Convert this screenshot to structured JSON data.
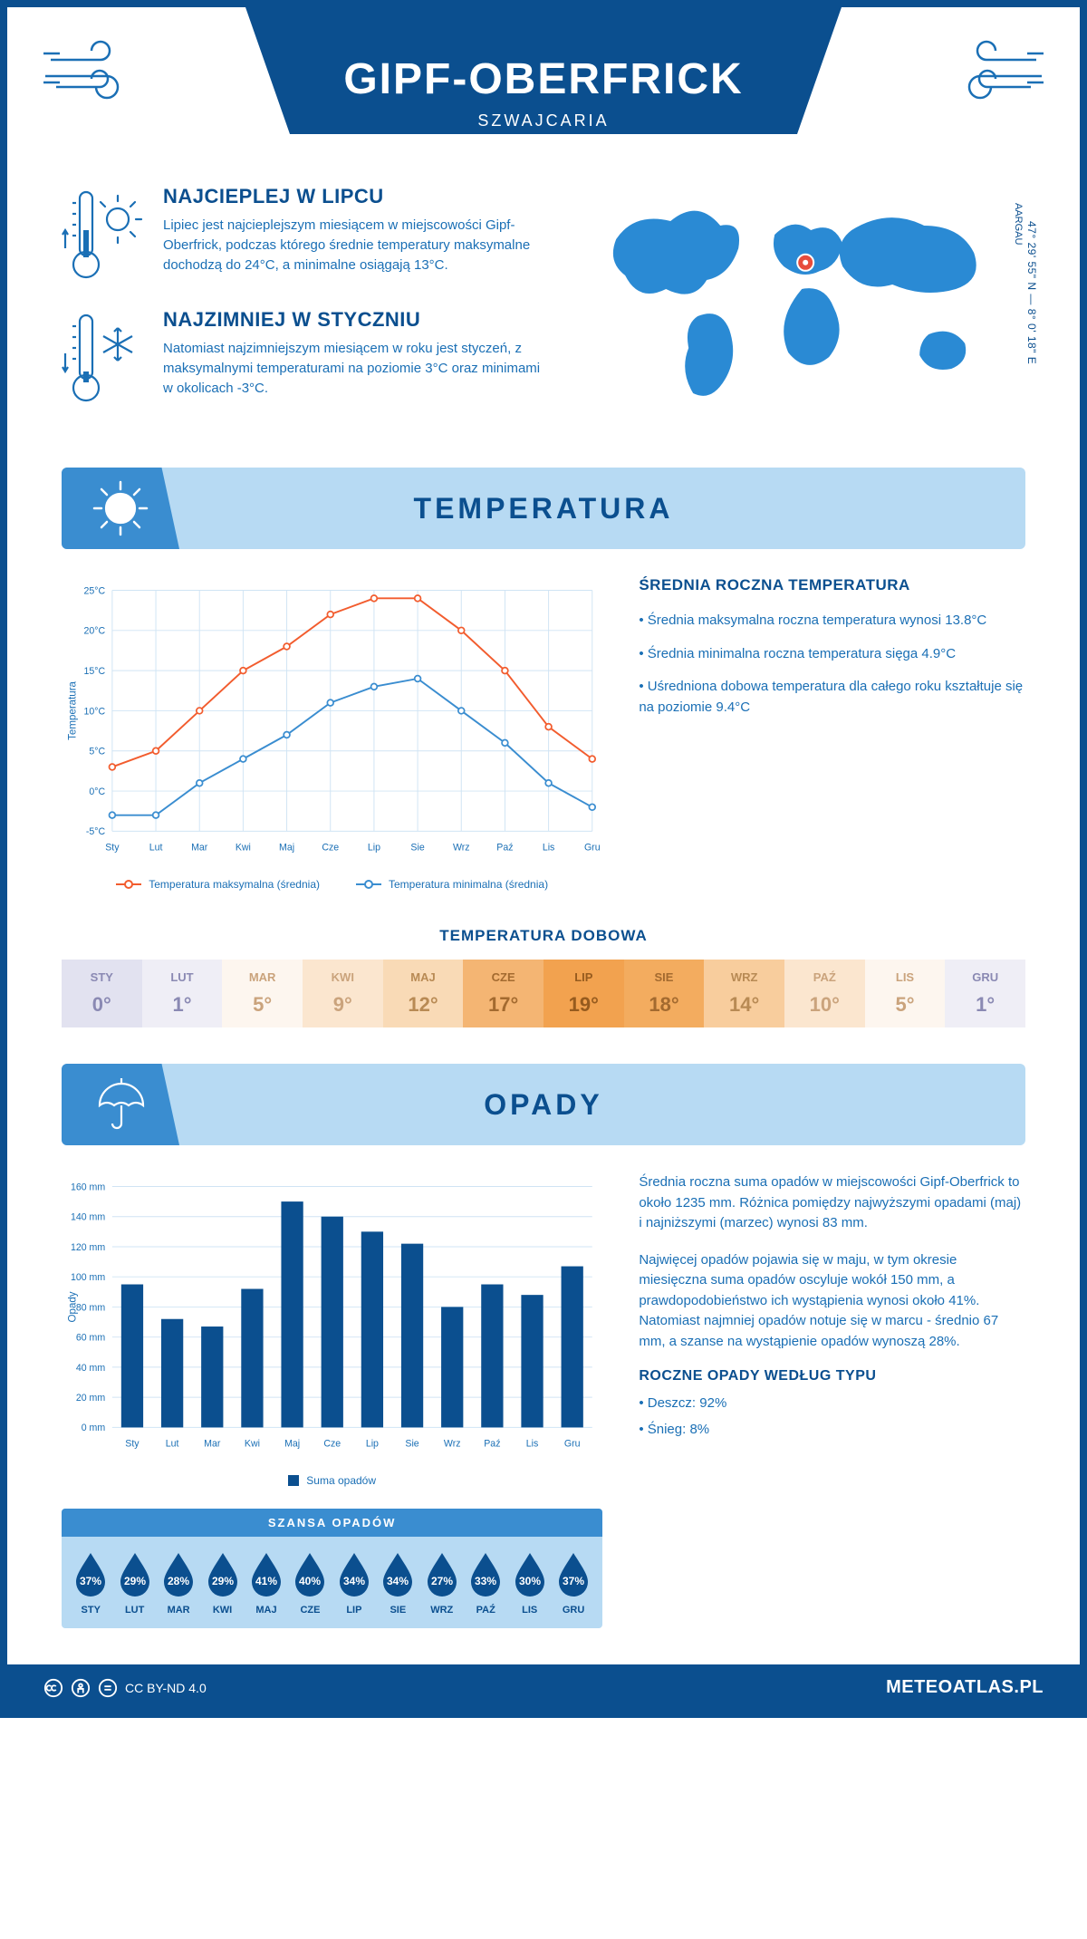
{
  "header": {
    "title": "GIPF-OBERFRICK",
    "subtitle": "SZWAJCARIA"
  },
  "colors": {
    "primary": "#0b4f8f",
    "accent": "#1a6fb5",
    "headband": "#b7daf3",
    "tab": "#3a8dd0",
    "max_line": "#f25c2e",
    "min_line": "#3a8dd0",
    "bar_fill": "#0b4f8f"
  },
  "intro": {
    "warm": {
      "title": "NAJCIEPLEJ W LIPCU",
      "text": "Lipiec jest najcieplejszym miesiącem w miejscowości Gipf-Oberfrick, podczas którego średnie temperatury maksymalne dochodzą do 24°C, a minimalne osiągają 13°C."
    },
    "cold": {
      "title": "NAJZIMNIEJ W STYCZNIU",
      "text": "Natomiast najzimniejszym miesiącem w roku jest styczeń, z maksymalnymi temperaturami na poziomie 3°C oraz minimami w okolicach -3°C."
    },
    "coords": "47° 29' 55\" N — 8° 0' 18\" E",
    "region": "AARGAU",
    "marker": {
      "cx_pct": 51.8,
      "cy_pct": 33
    }
  },
  "temperature": {
    "section_title": "TEMPERATURA",
    "chart": {
      "type": "line",
      "months": [
        "Sty",
        "Lut",
        "Mar",
        "Kwi",
        "Maj",
        "Cze",
        "Lip",
        "Sie",
        "Wrz",
        "Paź",
        "Lis",
        "Gru"
      ],
      "max": [
        3,
        5,
        10,
        15,
        18,
        22,
        24,
        24,
        20,
        15,
        8,
        4
      ],
      "min": [
        -3,
        -3,
        1,
        4,
        7,
        11,
        13,
        14,
        10,
        6,
        1,
        -2
      ],
      "ylim": [
        -5,
        25
      ],
      "ytick_step": 5,
      "ylabel": "Temperatura",
      "legend_max": "Temperatura maksymalna (średnia)",
      "legend_min": "Temperatura minimalna (średnia)",
      "max_color": "#f25c2e",
      "min_color": "#3a8dd0",
      "grid_color": "#d0e4f4",
      "marker_style": "circle",
      "marker_size": 3.5,
      "line_width": 2
    },
    "summary": {
      "title": "ŚREDNIA ROCZNA TEMPERATURA",
      "bullets": [
        "• Średnia maksymalna roczna temperatura wynosi 13.8°C",
        "• Średnia minimalna roczna temperatura sięga 4.9°C",
        "• Uśredniona dobowa temperatura dla całego roku kształtuje się na poziomie 9.4°C"
      ]
    },
    "daily": {
      "title": "TEMPERATURA DOBOWA",
      "months": [
        "STY",
        "LUT",
        "MAR",
        "KWI",
        "MAJ",
        "CZE",
        "LIP",
        "SIE",
        "WRZ",
        "PAŹ",
        "LIS",
        "GRU"
      ],
      "values": [
        "0°",
        "1°",
        "5°",
        "9°",
        "12°",
        "17°",
        "19°",
        "18°",
        "14°",
        "10°",
        "5°",
        "1°"
      ],
      "bg_colors": [
        "#e2e2f0",
        "#efeef6",
        "#fdf6ef",
        "#fbe6cf",
        "#f9dab6",
        "#f4b573",
        "#f2a24f",
        "#f3ac5f",
        "#f8cd9d",
        "#fbe6cf",
        "#fdf6ef",
        "#efeef6"
      ],
      "text_colors": [
        "#8a89b3",
        "#8a89b3",
        "#caa37c",
        "#caa37c",
        "#b88a54",
        "#a36a2f",
        "#965b1e",
        "#a36a2f",
        "#b88a54",
        "#caa37c",
        "#caa37c",
        "#8a89b3"
      ]
    }
  },
  "precipitation": {
    "section_title": "OPADY",
    "chart": {
      "type": "bar",
      "months": [
        "Sty",
        "Lut",
        "Mar",
        "Kwi",
        "Maj",
        "Cze",
        "Lip",
        "Sie",
        "Wrz",
        "Paź",
        "Lis",
        "Gru"
      ],
      "values": [
        95,
        72,
        67,
        92,
        150,
        140,
        130,
        122,
        80,
        95,
        88,
        107
      ],
      "ylim": [
        0,
        160
      ],
      "ytick_step": 20,
      "ylabel": "Opady",
      "legend": "Suma opadów",
      "bar_color": "#0b4f8f",
      "bar_width": 0.55,
      "grid_color": "#d0e4f4"
    },
    "text1": "Średnia roczna suma opadów w miejscowości Gipf-Oberfrick to około 1235 mm. Różnica pomiędzy najwyższymi opadami (maj) i najniższymi (marzec) wynosi 83 mm.",
    "text2": "Najwięcej opadów pojawia się w maju, w tym okresie miesięczna suma opadów oscyluje wokół 150 mm, a prawdopodobieństwo ich wystąpienia wynosi około 41%. Natomiast najmniej opadów notuje się w marcu - średnio 67 mm, a szanse na wystąpienie opadów wynoszą 28%.",
    "chance": {
      "title": "SZANSA OPADÓW",
      "months": [
        "STY",
        "LUT",
        "MAR",
        "KWI",
        "MAJ",
        "CZE",
        "LIP",
        "SIE",
        "WRZ",
        "PAŹ",
        "LIS",
        "GRU"
      ],
      "values": [
        "37%",
        "29%",
        "28%",
        "29%",
        "41%",
        "40%",
        "34%",
        "34%",
        "27%",
        "33%",
        "30%",
        "37%"
      ]
    },
    "by_type": {
      "title": "ROCZNE OPADY WEDŁUG TYPU",
      "items": [
        "• Deszcz: 92%",
        "• Śnieg: 8%"
      ]
    }
  },
  "footer": {
    "license": "CC BY-ND 4.0",
    "brand": "METEOATLAS.PL"
  }
}
